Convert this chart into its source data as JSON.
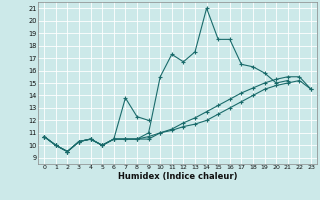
{
  "xlabel": "Humidex (Indice chaleur)",
  "xlim": [
    -0.5,
    23.5
  ],
  "ylim": [
    8.5,
    21.5
  ],
  "yticks": [
    9,
    10,
    11,
    12,
    13,
    14,
    15,
    16,
    17,
    18,
    19,
    20,
    21
  ],
  "xticks": [
    0,
    1,
    2,
    3,
    4,
    5,
    6,
    7,
    8,
    9,
    10,
    11,
    12,
    13,
    14,
    15,
    16,
    17,
    18,
    19,
    20,
    21,
    22,
    23
  ],
  "bg_color": "#cce9e9",
  "line_color": "#1a6b6b",
  "series": [
    [
      10.7,
      10.0,
      9.5,
      10.3,
      10.5,
      10.0,
      10.5,
      10.5,
      10.5,
      11.0,
      15.5,
      17.3,
      16.7,
      17.5,
      21.0,
      18.5,
      18.5,
      16.5,
      16.3,
      15.8,
      15.0,
      15.2,
      null,
      null
    ],
    [
      10.7,
      10.0,
      9.5,
      10.3,
      10.5,
      10.0,
      10.5,
      13.8,
      12.3,
      12.0,
      null,
      null,
      null,
      null,
      null,
      null,
      null,
      null,
      null,
      null,
      null,
      null,
      null,
      null
    ],
    [
      10.7,
      10.0,
      9.5,
      10.3,
      10.5,
      10.0,
      10.5,
      10.5,
      10.5,
      10.5,
      11.0,
      11.2,
      11.5,
      11.7,
      12.0,
      12.5,
      13.0,
      13.5,
      14.0,
      14.5,
      14.8,
      15.0,
      15.2,
      14.5
    ],
    [
      10.7,
      10.0,
      9.5,
      10.3,
      10.5,
      10.0,
      10.5,
      10.5,
      10.5,
      10.7,
      11.0,
      11.3,
      11.8,
      12.2,
      12.7,
      13.2,
      13.7,
      14.2,
      14.6,
      15.0,
      15.3,
      15.5,
      15.5,
      14.5
    ]
  ]
}
